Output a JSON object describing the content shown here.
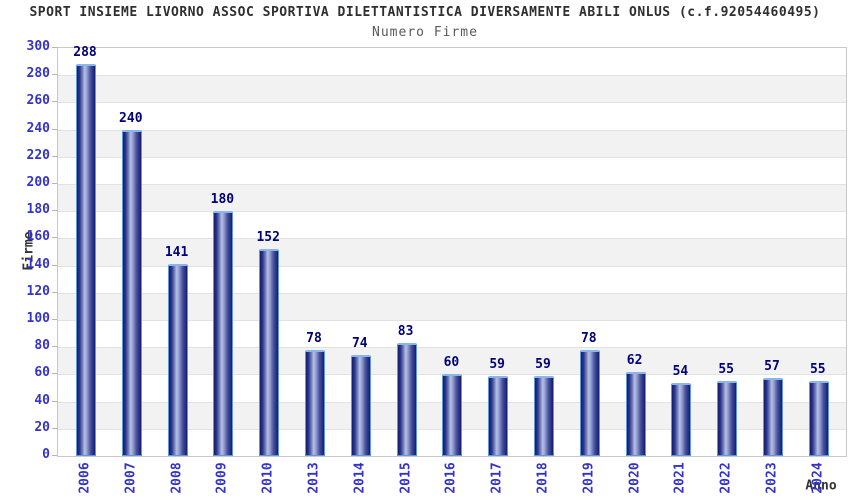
{
  "chart_data": {
    "type": "bar",
    "title": "SPORT INSIEME LIVORNO ASSOC SPORTIVA DILETTANTISTICA DIVERSAMENTE ABILI ONLUS (c.f.92054460495)",
    "subtitle": "Numero Firme",
    "xlabel": "Anno",
    "ylabel": "Firme",
    "categories": [
      "2006",
      "2007",
      "2008",
      "2009",
      "2010",
      "2013",
      "2014",
      "2015",
      "2016",
      "2017",
      "2018",
      "2019",
      "2020",
      "2021",
      "2022",
      "2023",
      "2024"
    ],
    "values": [
      288,
      240,
      141,
      180,
      152,
      78,
      74,
      83,
      60,
      59,
      59,
      78,
      62,
      54,
      55,
      57,
      55
    ],
    "ylim": [
      0,
      300
    ],
    "yticks": [
      0,
      20,
      40,
      60,
      80,
      100,
      120,
      140,
      160,
      180,
      200,
      220,
      240,
      260,
      280,
      300
    ],
    "grid": "horizontal gridlines every 20 with alternating background bands",
    "legend": "none",
    "colors": {
      "bar_dark": "#141c74",
      "bar_mid": "#7b86c0",
      "bar_highlight": "#b7c0e4",
      "bar_outline": "#5f9ad8",
      "bar_cap": "#8ab6ee",
      "value_label": "#00007a",
      "tick_label": "#3333cc",
      "title_text": "#2f2f2f",
      "subtitle_text": "#5a5a5a",
      "axis_label_text": "#333333",
      "band_main": "#ffffff",
      "band_alt": "#f2f2f2",
      "gridline": "#e2e2e2"
    }
  }
}
